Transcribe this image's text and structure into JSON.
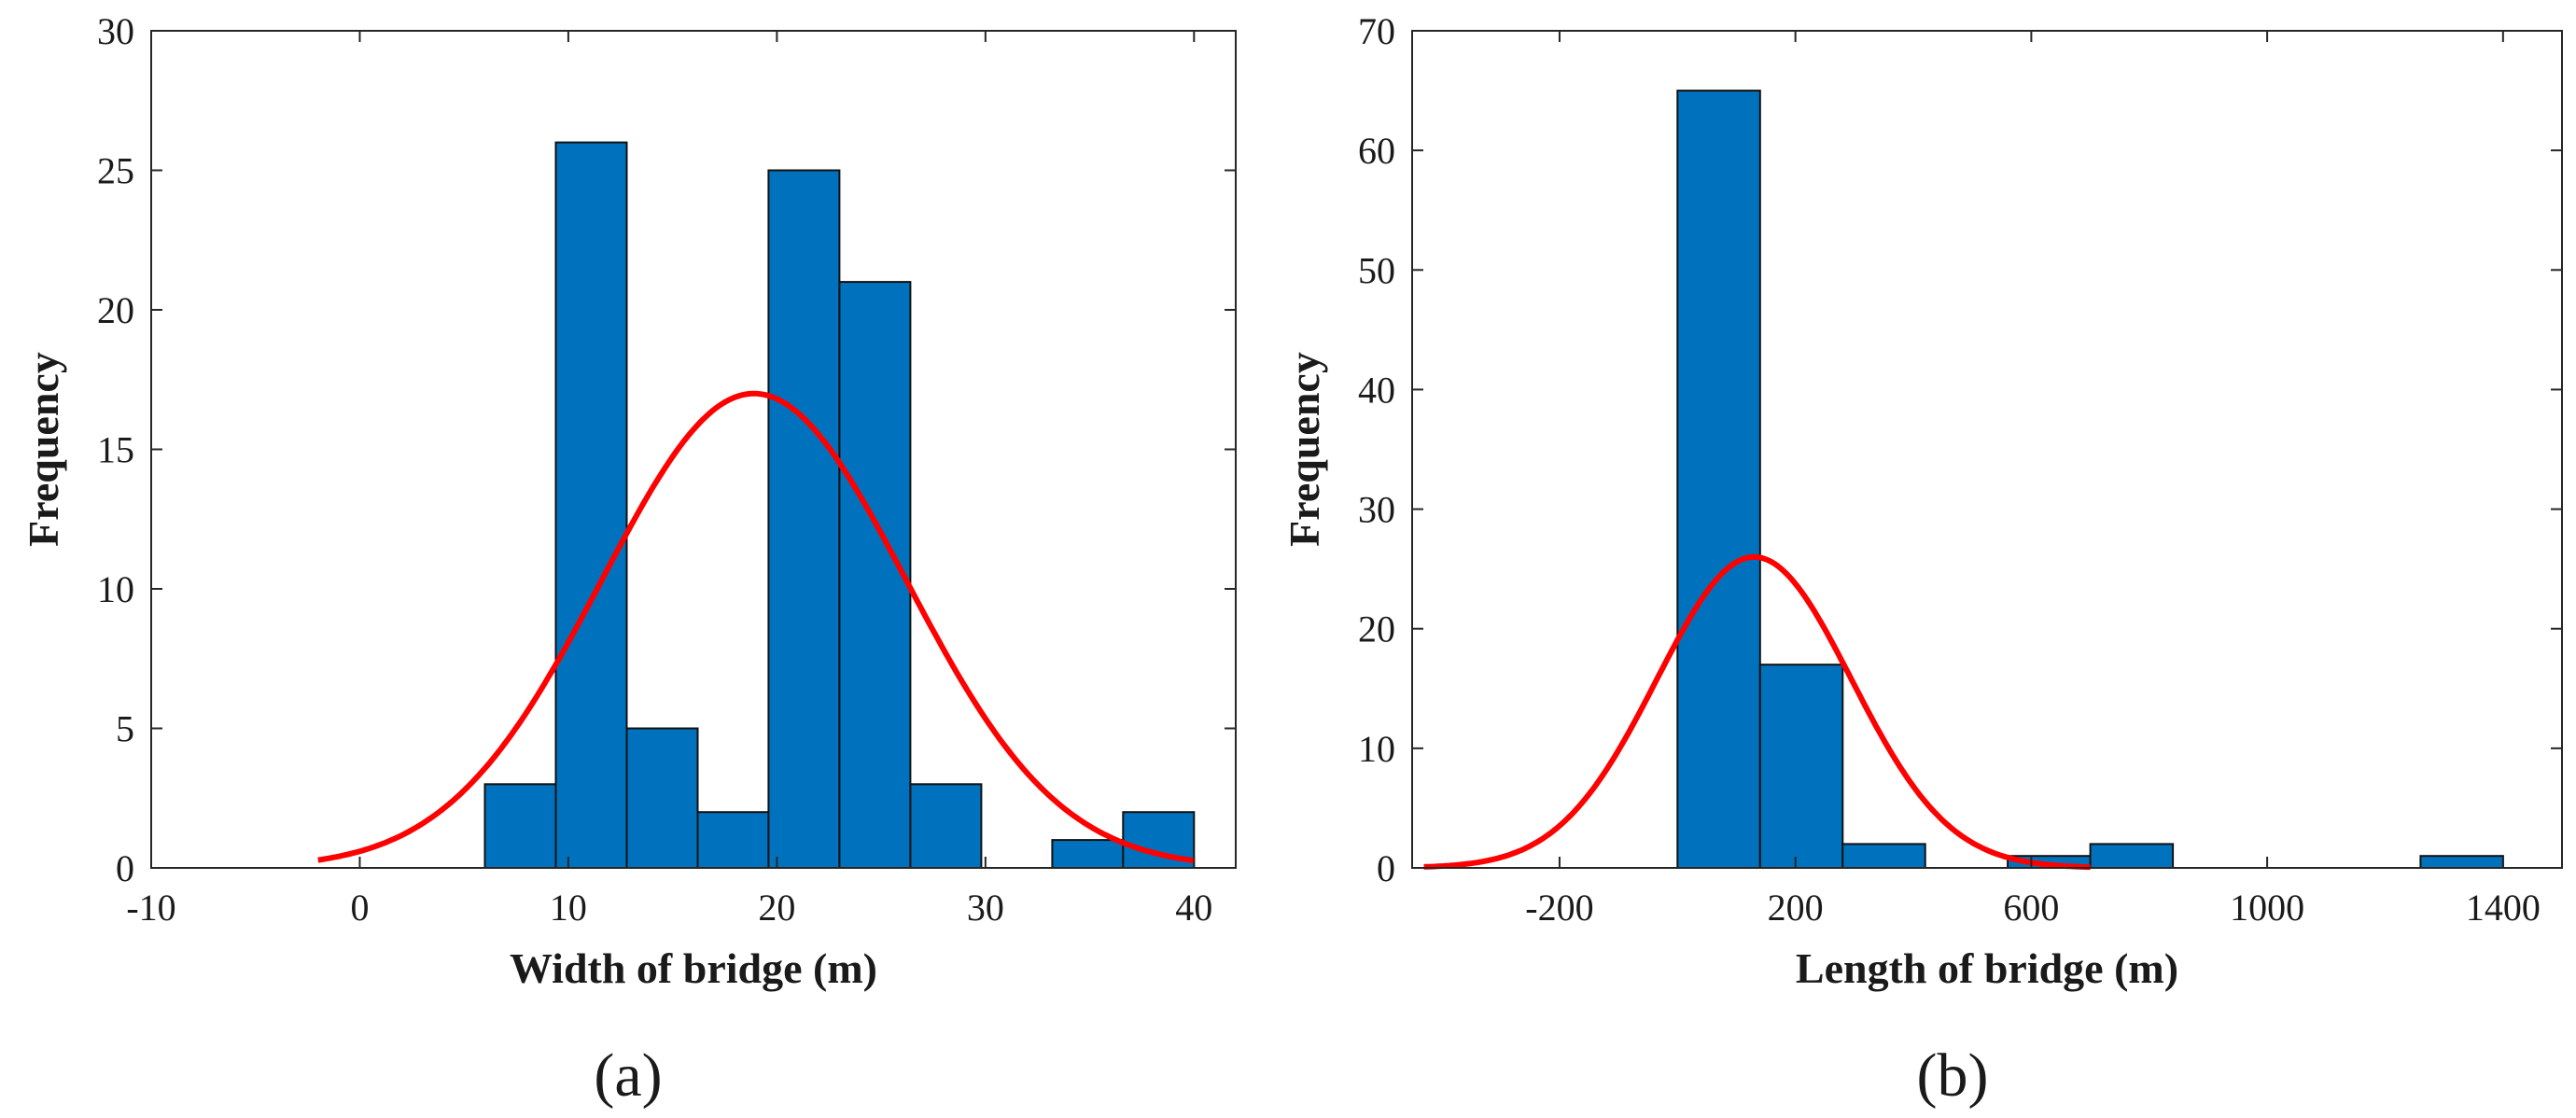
{
  "colors": {
    "bar_fill": "#0072BD",
    "bar_edge": "#111111",
    "curve": "#FF0000",
    "axis": "#262626"
  },
  "chart_data": [
    {
      "type": "bar",
      "panel_label": "(a)",
      "title": "",
      "xlabel": "Width of bridge (m)",
      "ylabel": "Frequency",
      "xlim": [
        -10,
        42
      ],
      "ylim": [
        0,
        30
      ],
      "xticks": [
        -10,
        0,
        10,
        20,
        30,
        40
      ],
      "xtick_labels": [
        "-10",
        "0",
        "10",
        "20",
        "30",
        "40"
      ],
      "yticks": [
        0,
        5,
        10,
        15,
        20,
        25,
        30
      ],
      "ytick_labels": [
        "0",
        "5",
        "10",
        "15",
        "20",
        "25",
        "30"
      ],
      "grid": false,
      "bins": [
        {
          "x0": 6.0,
          "x1": 9.4,
          "count": 3
        },
        {
          "x0": 9.4,
          "x1": 12.8,
          "count": 26
        },
        {
          "x0": 12.8,
          "x1": 16.2,
          "count": 5
        },
        {
          "x0": 16.2,
          "x1": 19.6,
          "count": 2
        },
        {
          "x0": 19.6,
          "x1": 23.0,
          "count": 25
        },
        {
          "x0": 23.0,
          "x1": 26.4,
          "count": 21
        },
        {
          "x0": 26.4,
          "x1": 29.8,
          "count": 3
        },
        {
          "x0": 29.8,
          "x1": 33.2,
          "count": 0
        },
        {
          "x0": 33.2,
          "x1": 36.6,
          "count": 1
        },
        {
          "x0": 36.6,
          "x1": 40.0,
          "count": 2
        }
      ],
      "fit": {
        "type": "normal",
        "peak": 17,
        "mean": 18.9,
        "sd": 7.3,
        "x_range": [
          -2,
          40
        ]
      }
    },
    {
      "type": "bar",
      "panel_label": "(b)",
      "title": "",
      "xlabel": "Length of bridge (m)",
      "ylabel": "Frequency",
      "xlim": [
        -450,
        1500
      ],
      "ylim": [
        0,
        70
      ],
      "xticks": [
        -200,
        200,
        600,
        1000,
        1400
      ],
      "xtick_labels": [
        "-200",
        "200",
        "600",
        "1000",
        "1400"
      ],
      "yticks": [
        0,
        10,
        20,
        30,
        40,
        50,
        60,
        70
      ],
      "ytick_labels": [
        "0",
        "10",
        "20",
        "30",
        "40",
        "50",
        "60",
        "70"
      ],
      "grid": false,
      "bins": [
        {
          "x0": 0,
          "x1": 140,
          "count": 65
        },
        {
          "x0": 140,
          "x1": 280,
          "count": 17
        },
        {
          "x0": 280,
          "x1": 420,
          "count": 2
        },
        {
          "x0": 420,
          "x1": 560,
          "count": 0
        },
        {
          "x0": 560,
          "x1": 700,
          "count": 1
        },
        {
          "x0": 700,
          "x1": 840,
          "count": 2
        },
        {
          "x0": 840,
          "x1": 980,
          "count": 0
        },
        {
          "x0": 980,
          "x1": 1120,
          "count": 0
        },
        {
          "x0": 1120,
          "x1": 1260,
          "count": 0
        },
        {
          "x0": 1260,
          "x1": 1400,
          "count": 1
        }
      ],
      "fit": {
        "type": "normal",
        "peak": 26,
        "mean": 130,
        "sd": 165,
        "x_range": [
          -430,
          700
        ]
      }
    }
  ]
}
